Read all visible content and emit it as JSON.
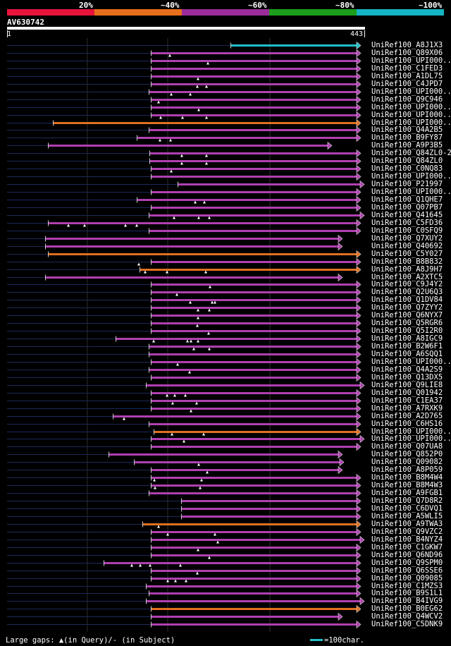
{
  "scale": {
    "labels": [
      "20%",
      "~40%",
      "~60%",
      "~80%",
      "~100%"
    ],
    "colors": [
      "#e8143c",
      "#e86e1c",
      "#9c2c9c",
      "#1ca01c",
      "#14b4c4"
    ]
  },
  "query": {
    "id": "AV630742",
    "start": "1",
    "end": "443"
  },
  "rows": [
    {
      "label": "UniRef100_A8J1X3",
      "color": "#20c0c8",
      "start": 327,
      "end": 512,
      "marks": []
    },
    {
      "label": "UniRef100_Q89X06",
      "color": "#b040b0",
      "start": 214,
      "end": 512,
      "marks": [
        241
      ]
    },
    {
      "label": "UniRef100_UPI000..",
      "color": "#b040b0",
      "start": 214,
      "end": 512,
      "marks": [
        295
      ]
    },
    {
      "label": "UniRef100_C1FED3",
      "color": "#b040b0",
      "start": 214,
      "end": 512,
      "marks": []
    },
    {
      "label": "UniRef100_A1DL75",
      "color": "#b040b0",
      "start": 214,
      "end": 512,
      "marks": [
        281
      ]
    },
    {
      "label": "UniRef100_C4JPD7",
      "color": "#b040b0",
      "start": 214,
      "end": 512,
      "marks": [
        280,
        293
      ]
    },
    {
      "label": "UniRef100_UPI000..",
      "color": "#b040b0",
      "start": 211,
      "end": 512,
      "marks": [
        243,
        270
      ]
    },
    {
      "label": "UniRef100_Q9C946",
      "color": "#b040b0",
      "start": 214,
      "end": 512,
      "marks": [
        225
      ]
    },
    {
      "label": "UniRef100_UPI000..",
      "color": "#b040b0",
      "start": 214,
      "end": 512,
      "marks": [
        282
      ]
    },
    {
      "label": "UniRef100_UPI000..",
      "color": "#b040b0",
      "start": 214,
      "end": 512,
      "marks": [
        228,
        259,
        293
      ]
    },
    {
      "label": "UniRef100_UPI000..",
      "color": "#e07020",
      "start": 75,
      "end": 512,
      "marks": []
    },
    {
      "label": "UniRef100_Q4A2B5",
      "color": "#b040b0",
      "start": 211,
      "end": 512,
      "marks": []
    },
    {
      "label": "UniRef100_B9FY87",
      "color": "#b040b0",
      "start": 194,
      "end": 512,
      "marks": [
        227,
        242
      ]
    },
    {
      "label": "UniRef100_A9P3B5",
      "color": "#b040b0",
      "start": 68,
      "end": 471,
      "marks": []
    },
    {
      "label": "UniRef100_Q84ZL0-2",
      "color": "#b040b0",
      "start": 212,
      "end": 512,
      "marks": [
        258,
        293
      ]
    },
    {
      "label": "UniRef100_Q84ZL0",
      "color": "#b040b0",
      "start": 212,
      "end": 512,
      "marks": [
        258,
        293
      ]
    },
    {
      "label": "UniRef100_C0NQ83",
      "color": "#b040b0",
      "start": 214,
      "end": 512,
      "marks": [
        243
      ]
    },
    {
      "label": "UniRef100_UPI000..",
      "color": "#b040b0",
      "start": 214,
      "end": 512,
      "marks": []
    },
    {
      "label": "UniRef100_P21997",
      "color": "#b040b0",
      "start": 252,
      "end": 517,
      "marks": []
    },
    {
      "label": "UniRef100_UPI000..",
      "color": "#b040b0",
      "start": 214,
      "end": 512,
      "marks": []
    },
    {
      "label": "UniRef100_Q1QHE7",
      "color": "#b040b0",
      "start": 194,
      "end": 512,
      "marks": [
        277,
        290
      ]
    },
    {
      "label": "UniRef100_Q07PB7",
      "color": "#b040b0",
      "start": 214,
      "end": 512,
      "marks": []
    },
    {
      "label": "UniRef100_Q41645",
      "color": "#b040b0",
      "start": 211,
      "end": 517,
      "marks": [
        247,
        282,
        297
      ]
    },
    {
      "label": "UniRef100_C5FD36",
      "color": "#b040b0",
      "start": 68,
      "end": 512,
      "marks": [
        97,
        120,
        178,
        194
      ]
    },
    {
      "label": "UniRef100_C0SFQ9",
      "color": "#b040b0",
      "start": 211,
      "end": 512,
      "marks": []
    },
    {
      "label": "UniRef100_Q7XUY2",
      "color": "#b040b0",
      "start": 64,
      "end": 486,
      "marks": []
    },
    {
      "label": "UniRef100_Q40692",
      "color": "#b040b0",
      "start": 64,
      "end": 486,
      "marks": []
    },
    {
      "label": "UniRef100_C5Y027",
      "color": "#e07020",
      "start": 68,
      "end": 512,
      "marks": []
    },
    {
      "label": "UniRef100_B8B832",
      "color": "#b040b0",
      "start": 214,
      "end": 512,
      "marks": [
        197
      ]
    },
    {
      "label": "UniRef100_A8J9H7",
      "color": "#e07020",
      "start": 198,
      "end": 512,
      "marks": [
        237,
        206,
        292
      ]
    },
    {
      "label": "UniRef100_A2XTC5",
      "color": "#b040b0",
      "start": 64,
      "end": 486,
      "marks": []
    },
    {
      "label": "UniRef100_C9J4Y2",
      "color": "#b040b0",
      "start": 214,
      "end": 512,
      "marks": [
        298
      ]
    },
    {
      "label": "UniRef100_Q2U6Q3",
      "color": "#b040b0",
      "start": 214,
      "end": 512,
      "marks": [
        251
      ]
    },
    {
      "label": "UniRef100_Q1DV84",
      "color": "#b040b0",
      "start": 214,
      "end": 512,
      "marks": [
        270,
        301,
        305
      ]
    },
    {
      "label": "UniRef100_Q7ZYY2",
      "color": "#b040b0",
      "start": 214,
      "end": 512,
      "marks": [
        281,
        297
      ]
    },
    {
      "label": "UniRef100_Q6NYX7",
      "color": "#b040b0",
      "start": 214,
      "end": 512,
      "marks": [
        281
      ]
    },
    {
      "label": "UniRef100_Q5RGR6",
      "color": "#b040b0",
      "start": 214,
      "end": 512,
      "marks": [
        280
      ]
    },
    {
      "label": "UniRef100_Q5I2R0",
      "color": "#b040b0",
      "start": 214,
      "end": 512,
      "marks": [
        296
      ]
    },
    {
      "label": "UniRef100_A8IGC9",
      "color": "#b040b0",
      "start": 164,
      "end": 512,
      "marks": [
        218,
        266,
        271,
        281
      ]
    },
    {
      "label": "UniRef100_B2W6F1",
      "color": "#b040b0",
      "start": 211,
      "end": 512,
      "marks": [
        275,
        297
      ]
    },
    {
      "label": "UniRef100_A6SQQ1",
      "color": "#b040b0",
      "start": 211,
      "end": 512,
      "marks": []
    },
    {
      "label": "UniRef100_UPI000..",
      "color": "#b040b0",
      "start": 214,
      "end": 512,
      "marks": [
        252
      ]
    },
    {
      "label": "UniRef100_Q4A2S9",
      "color": "#b040b0",
      "start": 211,
      "end": 512,
      "marks": [
        269
      ]
    },
    {
      "label": "UniRef100_Q13DX5",
      "color": "#b040b0",
      "start": 214,
      "end": 512,
      "marks": []
    },
    {
      "label": "UniRef100_Q9LIE8",
      "color": "#b040b0",
      "start": 207,
      "end": 517,
      "marks": []
    },
    {
      "label": "UniRef100_Q01942",
      "color": "#b040b0",
      "start": 214,
      "end": 512,
      "marks": [
        237,
        248,
        263
      ]
    },
    {
      "label": "UniRef100_C1EA37",
      "color": "#b040b0",
      "start": 214,
      "end": 512,
      "marks": [
        245,
        279
      ]
    },
    {
      "label": "UniRef100_A7RXK9",
      "color": "#b040b0",
      "start": 214,
      "end": 512,
      "marks": [
        271
      ]
    },
    {
      "label": "UniRef100_A2D765",
      "color": "#b040b0",
      "start": 160,
      "end": 512,
      "marks": [
        176
      ]
    },
    {
      "label": "UniRef100_C6HS16",
      "color": "#b040b0",
      "start": 211,
      "end": 512,
      "marks": []
    },
    {
      "label": "UniRef100_UPI000..",
      "color": "#e07020",
      "start": 218,
      "end": 512,
      "marks": [
        244,
        289
      ]
    },
    {
      "label": "UniRef100_UPI000..",
      "color": "#b040b0",
      "start": 214,
      "end": 517,
      "marks": [
        261
      ]
    },
    {
      "label": "UniRef100_Q07UA8",
      "color": "#b040b0",
      "start": 214,
      "end": 512,
      "marks": []
    },
    {
      "label": "UniRef100_Q852P0",
      "color": "#b040b0",
      "start": 154,
      "end": 486,
      "marks": []
    },
    {
      "label": "UniRef100_Q09082",
      "color": "#b040b0",
      "start": 190,
      "end": 488,
      "marks": [
        282
      ]
    },
    {
      "label": "UniRef100_A8P059",
      "color": "#b040b0",
      "start": 214,
      "end": 486,
      "marks": [
        294
      ]
    },
    {
      "label": "UniRef100_B8M4W4",
      "color": "#b040b0",
      "start": 214,
      "end": 512,
      "marks": [
        219,
        286
      ]
    },
    {
      "label": "UniRef100_B8M4W3",
      "color": "#b040b0",
      "start": 214,
      "end": 512,
      "marks": [
        220,
        284
      ]
    },
    {
      "label": "UniRef100_A9FGB1",
      "color": "#b040b0",
      "start": 211,
      "end": 512,
      "marks": []
    },
    {
      "label": "UniRef100_Q7D8R2",
      "color": "#b040b0",
      "start": 257,
      "end": 512,
      "marks": []
    },
    {
      "label": "UniRef100_C6DVQ1",
      "color": "#b040b0",
      "start": 257,
      "end": 512,
      "marks": []
    },
    {
      "label": "UniRef100_A5WLI5",
      "color": "#b040b0",
      "start": 257,
      "end": 512,
      "marks": []
    },
    {
      "label": "UniRef100_A9TWA3",
      "color": "#e07020",
      "start": 202,
      "end": 512,
      "marks": [
        225
      ]
    },
    {
      "label": "UniRef100_Q9VZC2",
      "color": "#b040b0",
      "start": 214,
      "end": 512,
      "marks": [
        238,
        305
      ]
    },
    {
      "label": "UniRef100_B4NYZ4",
      "color": "#b040b0",
      "start": 214,
      "end": 517,
      "marks": [
        309
      ]
    },
    {
      "label": "UniRef100_C1GKW7",
      "color": "#b040b0",
      "start": 214,
      "end": 512,
      "marks": [
        281
      ]
    },
    {
      "label": "UniRef100_Q6ND96",
      "color": "#b040b0",
      "start": 214,
      "end": 512,
      "marks": [
        297
      ]
    },
    {
      "label": "UniRef100_Q9SPM0",
      "color": "#b040b0",
      "start": 147,
      "end": 512,
      "marks": [
        187,
        199,
        213,
        256
      ]
    },
    {
      "label": "UniRef100_Q6SSE6",
      "color": "#b040b0",
      "start": 214,
      "end": 512,
      "marks": [
        280
      ]
    },
    {
      "label": "UniRef100_Q09085",
      "color": "#b040b0",
      "start": 214,
      "end": 512,
      "marks": [
        238,
        249,
        264
      ]
    },
    {
      "label": "UniRef100_C1MZS3",
      "color": "#b040b0",
      "start": 207,
      "end": 512,
      "marks": []
    },
    {
      "label": "UniRef100_B9S1L1",
      "color": "#b040b0",
      "start": 211,
      "end": 512,
      "marks": []
    },
    {
      "label": "UniRef100_B4IVG9",
      "color": "#b040b0",
      "start": 207,
      "end": 517,
      "marks": []
    },
    {
      "label": "UniRef100_B0EG62",
      "color": "#e07020",
      "start": 214,
      "end": 512,
      "marks": []
    },
    {
      "label": "UniRef100_Q4WCV2",
      "color": "#b040b0",
      "start": 214,
      "end": 486,
      "marks": []
    },
    {
      "label": "UniRef100_C5DNK9",
      "color": "#b040b0",
      "start": 214,
      "end": 512,
      "marks": []
    }
  ],
  "footer": {
    "legend": "Large gaps: ▲(in Query)/- (in Subject)",
    "scale_label": "=100char."
  }
}
